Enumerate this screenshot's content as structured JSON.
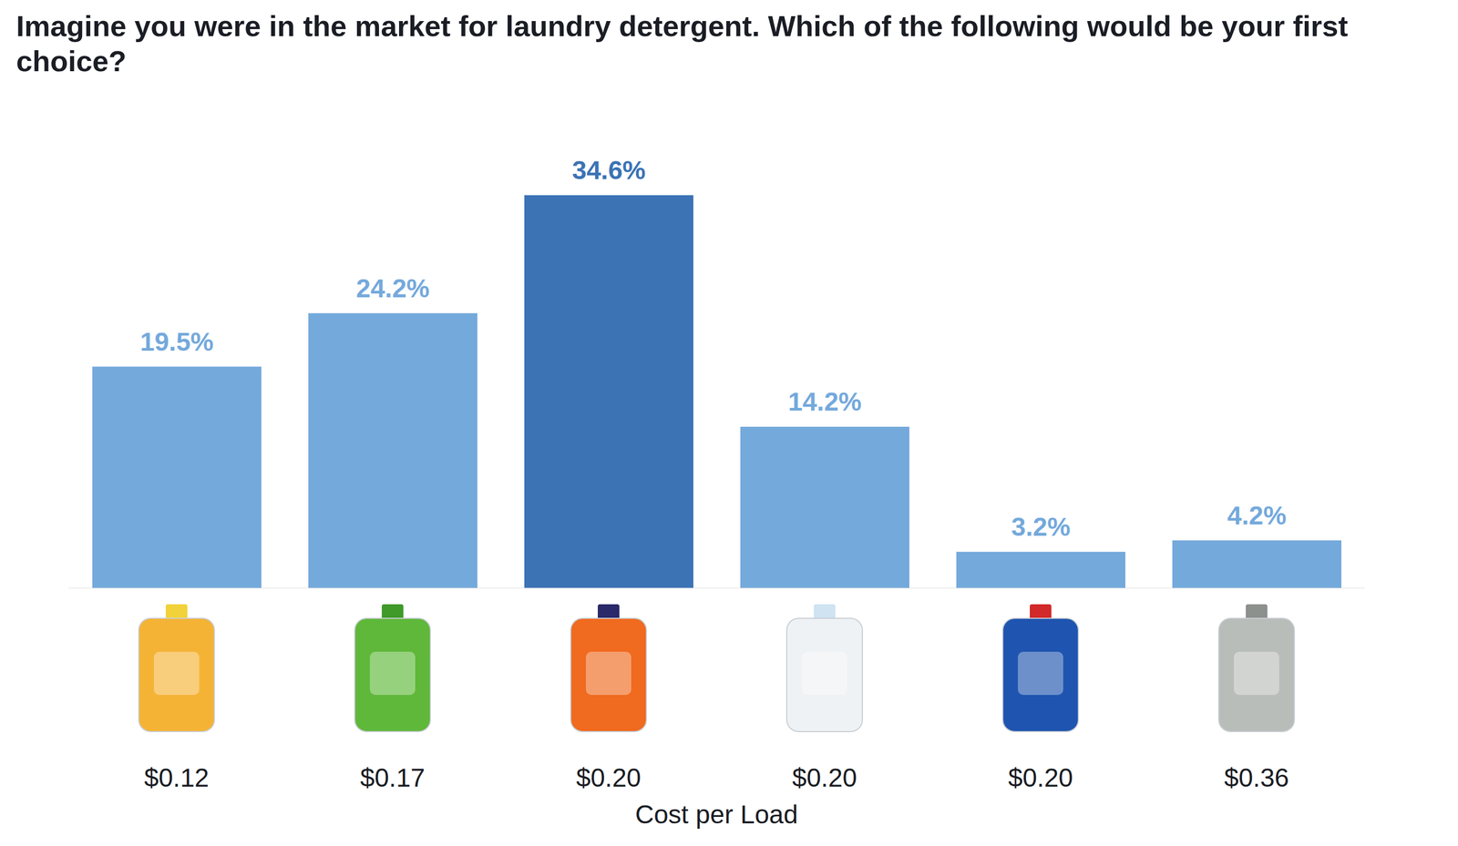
{
  "chart_data": {
    "type": "bar",
    "title": "Imagine you were in the market for laundry detergent. Which of the following would be your first choice?",
    "x_label": "Cost per Load",
    "categories": [
      "$0.12",
      "$0.17",
      "$0.20",
      "$0.20",
      "$0.20",
      "$0.36"
    ],
    "values": [
      19.5,
      24.2,
      34.6,
      14.2,
      3.2,
      4.2
    ],
    "value_labels": [
      "19.5%",
      "24.2%",
      "34.6%",
      "14.2%",
      "3.2%",
      "4.2%"
    ],
    "colors": [
      "#74a9dc",
      "#74a9dc",
      "#3b73b5",
      "#74a9dc",
      "#74a9dc",
      "#74a9dc"
    ],
    "ylim": [
      0,
      40
    ],
    "grid": false,
    "data_labels": true,
    "tick_labels": "x"
  }
}
